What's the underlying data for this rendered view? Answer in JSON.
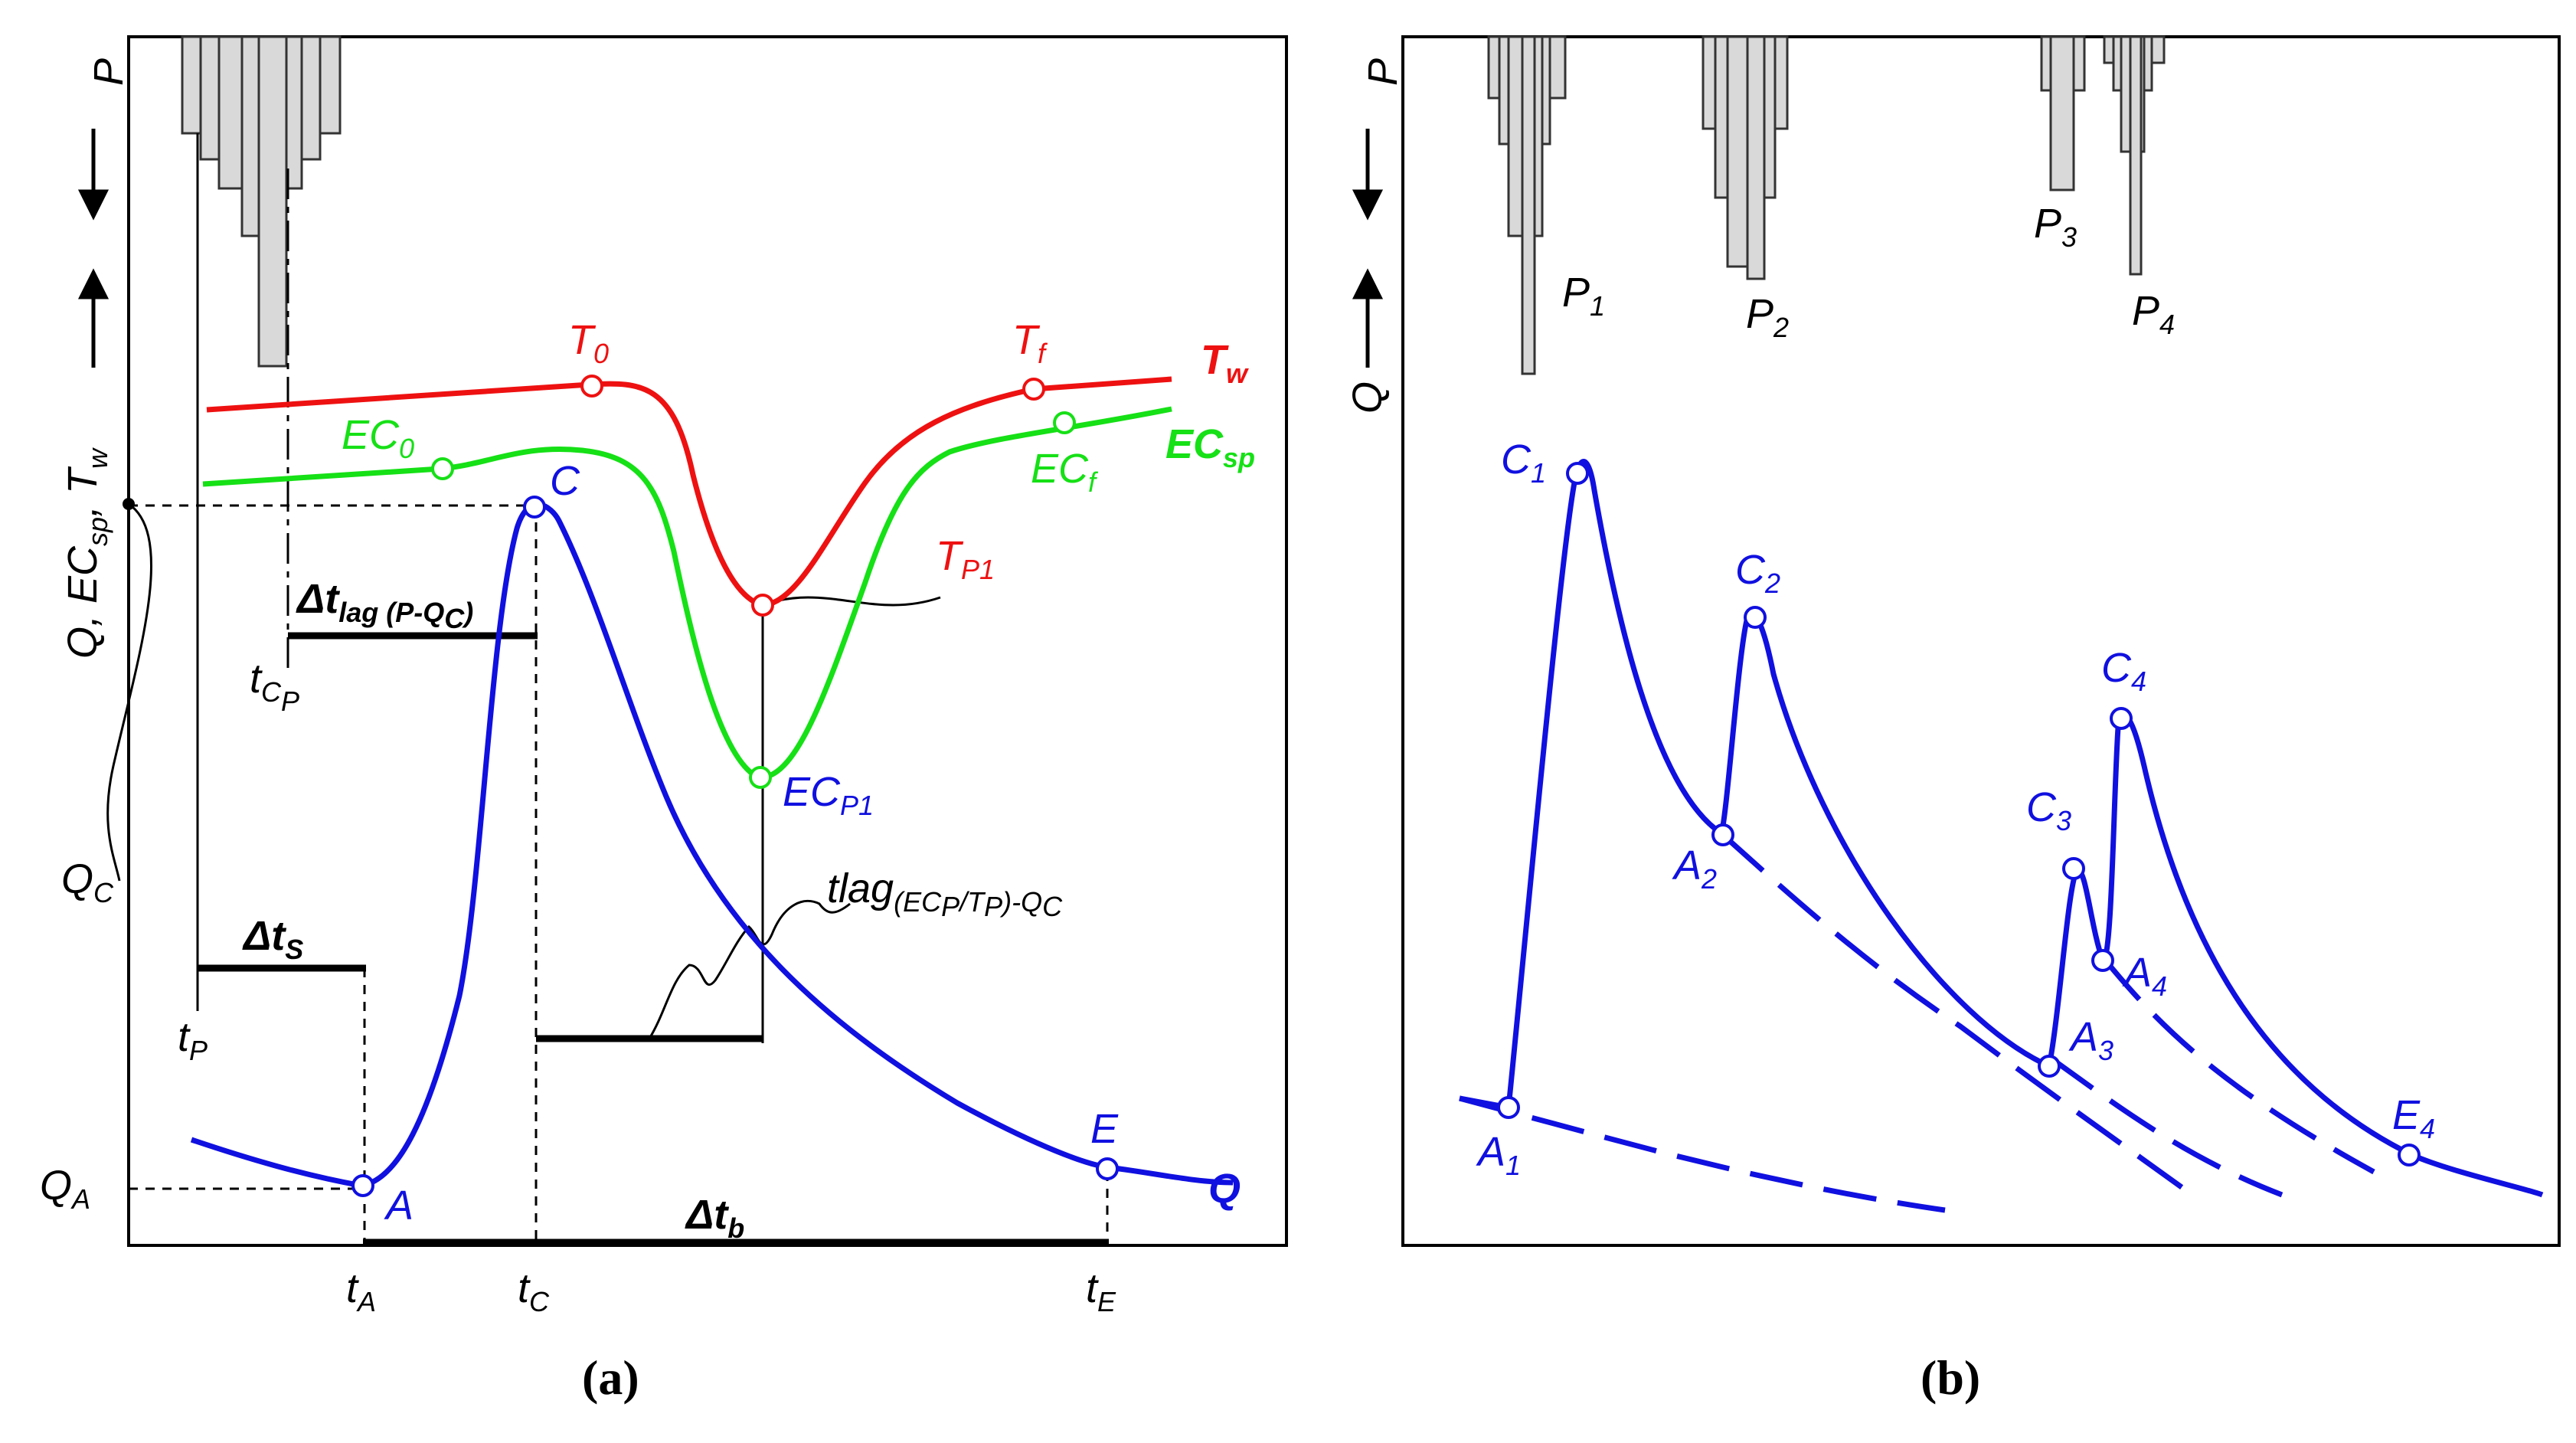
{
  "colors": {
    "discharge": "#1010e0",
    "conductivity": "#16e016",
    "temperature": "#ee1111",
    "axis": "#000000",
    "precip_fill": "#d9d9d9",
    "precip_stroke": "#333333"
  },
  "panel_a": {
    "caption": "(a)",
    "y_axis_label": {
      "main": "Q, EC",
      "sub1": "sp",
      "mid": ", T",
      "sub2": "w"
    },
    "p_label": "P",
    "series_labels": {
      "tw": {
        "main": "T",
        "sub": "w"
      },
      "ecsp": {
        "main": "EC",
        "sub": "sp"
      },
      "q": "Q"
    },
    "points": {
      "T0": {
        "main": "T",
        "sub": "0"
      },
      "Tf": {
        "main": "T",
        "sub": "f"
      },
      "EC0": {
        "main": "EC",
        "sub": "0"
      },
      "ECf": {
        "main": "EC",
        "sub": "f"
      },
      "TP1": {
        "main": "T",
        "sub": "P1"
      },
      "ECP1": {
        "main": "EC",
        "sub": "P1"
      },
      "C": "C",
      "A": "A",
      "E": "E"
    },
    "annotations": {
      "QC": {
        "main": "Q",
        "sub": "C"
      },
      "QA": {
        "main": "Q",
        "sub": "A"
      },
      "dt_s": {
        "main": "Δt",
        "sub": "S"
      },
      "dt_lag": {
        "main": "Δt",
        "sub": "lag (P-Q",
        "sub2": "C",
        "end": ")"
      },
      "tCP": {
        "main": "t",
        "sub": "C",
        "sub2": "P"
      },
      "tlag": {
        "main": "tlag",
        "sub": "(EC",
        "s1": "P",
        "mid": "/T",
        "s2": "P",
        "mid2": ")-Q",
        "s3": "C"
      },
      "dt_b": {
        "main": "Δt",
        "sub": "b"
      },
      "tP": {
        "main": "t",
        "sub": "P"
      }
    },
    "x_ticks": [
      {
        "main": "t",
        "sub": "A"
      },
      {
        "main": "t",
        "sub": "C"
      },
      {
        "main": "t",
        "sub": "E"
      }
    ]
  },
  "panel_b": {
    "caption": "(b)",
    "y_axis_label": "Q",
    "p_label": "P",
    "events": [
      {
        "main": "P",
        "sub": "1"
      },
      {
        "main": "P",
        "sub": "2"
      },
      {
        "main": "P",
        "sub": "3"
      },
      {
        "main": "P",
        "sub": "4"
      }
    ],
    "points": [
      {
        "main": "C",
        "sub": "1"
      },
      {
        "main": "C",
        "sub": "2"
      },
      {
        "main": "C",
        "sub": "3"
      },
      {
        "main": "C",
        "sub": "4"
      },
      {
        "main": "A",
        "sub": "1"
      },
      {
        "main": "A",
        "sub": "2"
      },
      {
        "main": "A",
        "sub": "3"
      },
      {
        "main": "A",
        "sub": "4"
      },
      {
        "main": "E",
        "sub": "4"
      }
    ]
  }
}
